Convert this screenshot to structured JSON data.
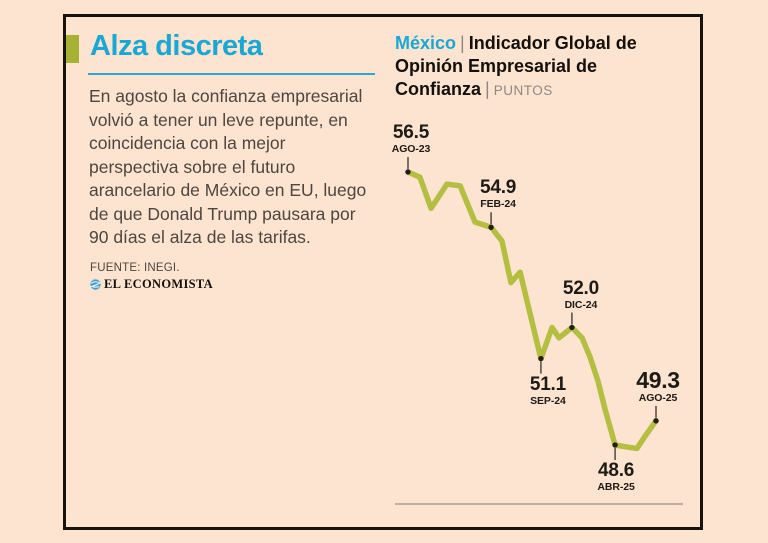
{
  "page": {
    "background": "#fce4d0",
    "frame_color": "#16120f"
  },
  "left_panel": {
    "accent_color": "#a7b234",
    "title": "Alza discreta",
    "title_color": "#1ba7d3",
    "paragraph": "En agosto la confianza empresarial volvió a tener un leve repunte, en coincidencia con la mejor perspectiva sobre el futuro arancelario de México en EU, luego de que Donald Trump pausara por 90 días el alza de las tarifas.",
    "source": "FUENTE: INEGI.",
    "brand": "EL ECONOMISTA"
  },
  "chart_header": {
    "region": "México",
    "separator": "|",
    "title_lines": [
      "Indicador Global",
      "de Opinión Empresarial de",
      "Confianza"
    ],
    "unit": "PUNTOS"
  },
  "chart_data": {
    "type": "line",
    "title": "México | Indicador Global de Opinión Empresarial de Confianza",
    "unit": "PUNTOS",
    "line_color": "#b4bf41",
    "dot_color": "#221d19",
    "leader_color": "#36302a",
    "baseline_color": "#a69e95",
    "x_range": [
      "AGO-23",
      "AGO-25"
    ],
    "value_range_shown": [
      48.5,
      56.5
    ],
    "grid": "off",
    "points": [
      {
        "t": 0.0,
        "v": 56.5
      },
      {
        "t": 0.048,
        "v": 56.35
      },
      {
        "t": 0.093,
        "v": 55.45
      },
      {
        "t": 0.157,
        "v": 56.15
      },
      {
        "t": 0.21,
        "v": 56.1
      },
      {
        "t": 0.27,
        "v": 55.05
      },
      {
        "t": 0.335,
        "v": 54.9
      },
      {
        "t": 0.379,
        "v": 54.5
      },
      {
        "t": 0.415,
        "v": 53.3
      },
      {
        "t": 0.452,
        "v": 53.6
      },
      {
        "t": 0.536,
        "v": 51.1
      },
      {
        "t": 0.581,
        "v": 52.0
      },
      {
        "t": 0.609,
        "v": 51.7
      },
      {
        "t": 0.661,
        "v": 52.0
      },
      {
        "t": 0.702,
        "v": 51.7
      },
      {
        "t": 0.734,
        "v": 51.15
      },
      {
        "t": 0.766,
        "v": 50.45
      },
      {
        "t": 0.794,
        "v": 49.65
      },
      {
        "t": 0.835,
        "v": 48.6
      },
      {
        "t": 0.879,
        "v": 48.55
      },
      {
        "t": 0.923,
        "v": 48.5
      },
      {
        "t": 0.96,
        "v": 48.9
      },
      {
        "t": 1.0,
        "v": 49.3
      }
    ],
    "annotations": [
      {
        "value": "56.5",
        "date": "AGO-23",
        "t": 0.0,
        "v": 56.5,
        "side": "above",
        "emphasis": false,
        "dx": 3
      },
      {
        "value": "54.9",
        "date": "FEB-24",
        "t": 0.335,
        "v": 54.9,
        "side": "above",
        "emphasis": false,
        "dx": 7
      },
      {
        "value": "52.0",
        "date": "DIC-24",
        "t": 0.661,
        "v": 52.0,
        "side": "above",
        "emphasis": false,
        "dx": 9
      },
      {
        "value": "51.1",
        "date": "SEP-24",
        "t": 0.536,
        "v": 51.1,
        "side": "below",
        "emphasis": false,
        "dx": 7
      },
      {
        "value": "48.6",
        "date": "ABR-25",
        "t": 0.835,
        "v": 48.6,
        "side": "below",
        "emphasis": false,
        "dx": 1
      },
      {
        "value": "49.3",
        "date": "AGO-25",
        "t": 1.0,
        "v": 49.3,
        "side": "above",
        "emphasis": true,
        "dx": 2
      }
    ]
  }
}
